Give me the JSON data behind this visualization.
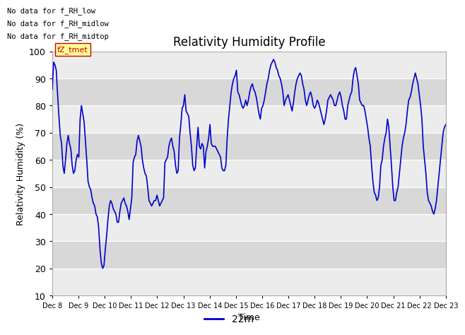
{
  "title": "Relativity Humidity Profile",
  "xlabel": "Time",
  "ylabel": "Relativity Humidity (%)",
  "ylim": [
    10,
    100
  ],
  "yticks": [
    10,
    20,
    30,
    40,
    50,
    60,
    70,
    80,
    90,
    100
  ],
  "line_color": "#0000CC",
  "line_width": 1.2,
  "legend_label": "22m",
  "legend_line_color": "#0000CC",
  "no_data_texts": [
    "No data for f_RH_low",
    "No data for f_RH_midlow",
    "No data for f_RH_midtop"
  ],
  "fz_tmet_label": "fZ_tmet",
  "background_color": "#ffffff",
  "plot_bg_color": "#e0e0e0",
  "grid_stripe_light": "#ececec",
  "grid_stripe_dark": "#d8d8d8",
  "grid_line_color": "#ffffff",
  "xtick_labels": [
    "Dec 8",
    "Dec 9",
    "Dec 10",
    "Dec 11",
    "Dec 12",
    "Dec 13",
    "Dec 14",
    "Dec 15",
    "Dec 16",
    "Dec 17",
    "Dec 18",
    "Dec 19",
    "Dec 20",
    "Dec 21",
    "Dec 22",
    "Dec 23"
  ],
  "data_points": [
    86,
    96,
    95,
    93,
    84,
    76,
    69,
    66,
    58,
    55,
    60,
    66,
    69,
    66,
    64,
    58,
    55,
    56,
    60,
    62,
    61,
    75,
    80,
    77,
    74,
    67,
    60,
    52,
    50,
    49,
    46,
    44,
    43,
    40,
    39,
    35,
    27,
    22,
    20,
    21,
    27,
    32,
    38,
    43,
    45,
    44,
    42,
    41,
    40,
    37,
    37,
    41,
    44,
    45,
    46,
    44,
    43,
    41,
    38,
    42,
    46,
    59,
    61,
    62,
    67,
    69,
    67,
    65,
    60,
    57,
    55,
    54,
    50,
    45,
    44,
    43,
    44,
    45,
    45,
    47,
    45,
    43,
    44,
    45,
    46,
    59,
    60,
    61,
    65,
    67,
    68,
    65,
    63,
    58,
    55,
    56,
    68,
    73,
    79,
    80,
    84,
    78,
    77,
    76,
    70,
    65,
    58,
    56,
    57,
    65,
    72,
    65,
    64,
    66,
    65,
    57,
    63,
    65,
    68,
    73,
    66,
    65,
    65,
    65,
    64,
    63,
    62,
    61,
    57,
    56,
    56,
    58,
    68,
    75,
    80,
    85,
    88,
    90,
    91,
    93,
    85,
    84,
    82,
    80,
    79,
    80,
    82,
    80,
    82,
    85,
    87,
    88,
    86,
    85,
    83,
    80,
    77,
    75,
    79,
    80,
    82,
    85,
    88,
    90,
    93,
    95,
    96,
    97,
    96,
    94,
    93,
    91,
    90,
    88,
    85,
    80,
    82,
    83,
    84,
    82,
    80,
    78,
    81,
    85,
    88,
    90,
    91,
    92,
    91,
    88,
    86,
    82,
    80,
    82,
    84,
    85,
    83,
    80,
    79,
    80,
    82,
    81,
    79,
    77,
    75,
    73,
    75,
    78,
    82,
    83,
    84,
    83,
    82,
    80,
    80,
    82,
    84,
    85,
    83,
    80,
    78,
    75,
    75,
    80,
    82,
    84,
    85,
    90,
    93,
    94,
    91,
    88,
    82,
    81,
    80,
    80,
    78,
    75,
    72,
    68,
    65,
    58,
    52,
    48,
    47,
    45,
    46,
    50,
    58,
    60,
    65,
    68,
    70,
    75,
    72,
    65,
    58,
    50,
    45,
    45,
    48,
    50,
    55,
    60,
    65,
    68,
    70,
    73,
    78,
    82,
    83,
    85,
    88,
    90,
    92,
    90,
    88,
    84,
    80,
    75,
    65,
    60,
    55,
    48,
    45,
    44,
    43,
    41,
    40,
    42,
    45,
    50,
    55,
    60,
    65,
    70,
    72,
    73
  ]
}
